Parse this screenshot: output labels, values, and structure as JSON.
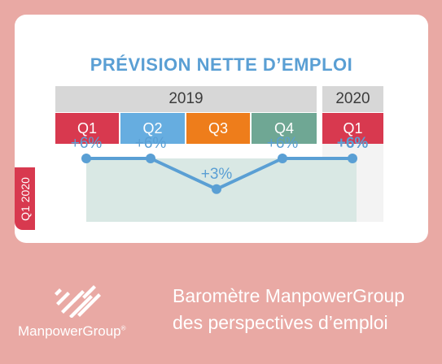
{
  "card": {
    "title": "PRÉVISION NETTE D’EMPLOI",
    "year_2019": "2019",
    "year_2020": "2020",
    "side_label": "Q1 2020"
  },
  "quarters": [
    {
      "label": "Q1",
      "color": "#d8394f"
    },
    {
      "label": "Q2",
      "color": "#66ade0"
    },
    {
      "label": "Q3",
      "color": "#ee7d1b"
    },
    {
      "label": "Q4",
      "color": "#6fa794"
    },
    {
      "label": "Q1",
      "color": "#d8394f"
    }
  ],
  "chart_data": {
    "type": "line",
    "title": "PRÉVISION NETTE D’EMPLOI",
    "groups": [
      {
        "label": "2019",
        "categories": [
          "Q1",
          "Q2",
          "Q3",
          "Q4"
        ]
      },
      {
        "label": "2020",
        "categories": [
          "Q1"
        ]
      }
    ],
    "categories": [
      "Q1",
      "Q2",
      "Q3",
      "Q4",
      "Q1"
    ],
    "values": [
      6,
      6,
      3,
      6,
      6
    ],
    "data_labels": [
      "+6%",
      "+6%",
      "+3%",
      "+6%",
      "+6%"
    ],
    "line_color": "#5a9fd4",
    "fill_color": "#d9e8e4"
  },
  "footer": {
    "brand": "ManpowerGroup",
    "trademark": "®",
    "tagline_line1": "Baromètre ManpowerGroup",
    "tagline_line2": "des perspectives d’emploi"
  }
}
